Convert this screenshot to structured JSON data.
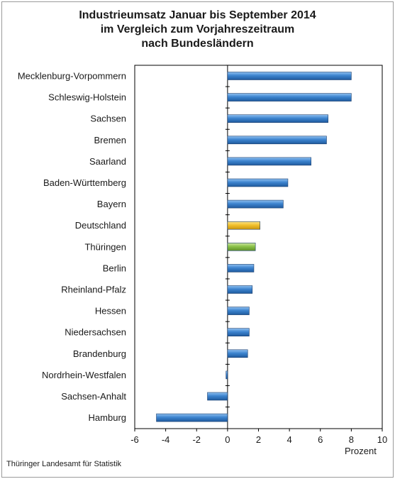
{
  "title_lines": [
    "Industrieumsatz Januar bis September 2014",
    "im Vergleich zum Vorjahreszeitraum",
    "nach Bundesländern"
  ],
  "source": "Thüringer Landesamt für Statistik",
  "chart_data": {
    "type": "bar",
    "orientation": "horizontal",
    "title": "Industrieumsatz Januar bis September 2014 im Vergleich zum Vorjahreszeitraum nach Bundesländern",
    "xlabel": "Prozent",
    "ylabel": "",
    "xlim": [
      -6,
      10
    ],
    "xticks": [
      -6,
      -4,
      -2,
      0,
      2,
      4,
      6,
      8,
      10
    ],
    "grid": false,
    "categories": [
      "Mecklenburg-Vorpommern",
      "Schleswig-Holstein",
      "Sachsen",
      "Bremen",
      "Saarland",
      "Baden-Württemberg",
      "Bayern",
      "Deutschland",
      "Thüringen",
      "Berlin",
      "Rheinland-Pfalz",
      "Hessen",
      "Niedersachsen",
      "Brandenburg",
      "Nordrhein-Westfalen",
      "Sachsen-Anhalt",
      "Hamburg"
    ],
    "values": [
      8.0,
      8.0,
      6.5,
      6.4,
      5.4,
      3.9,
      3.6,
      2.1,
      1.8,
      1.7,
      1.6,
      1.4,
      1.4,
      1.3,
      -0.1,
      -1.3,
      -4.6
    ],
    "colors": {
      "default": "#3d84cf",
      "Deutschland": "#f2c12e",
      "Thüringen": "#8cc34a"
    }
  }
}
